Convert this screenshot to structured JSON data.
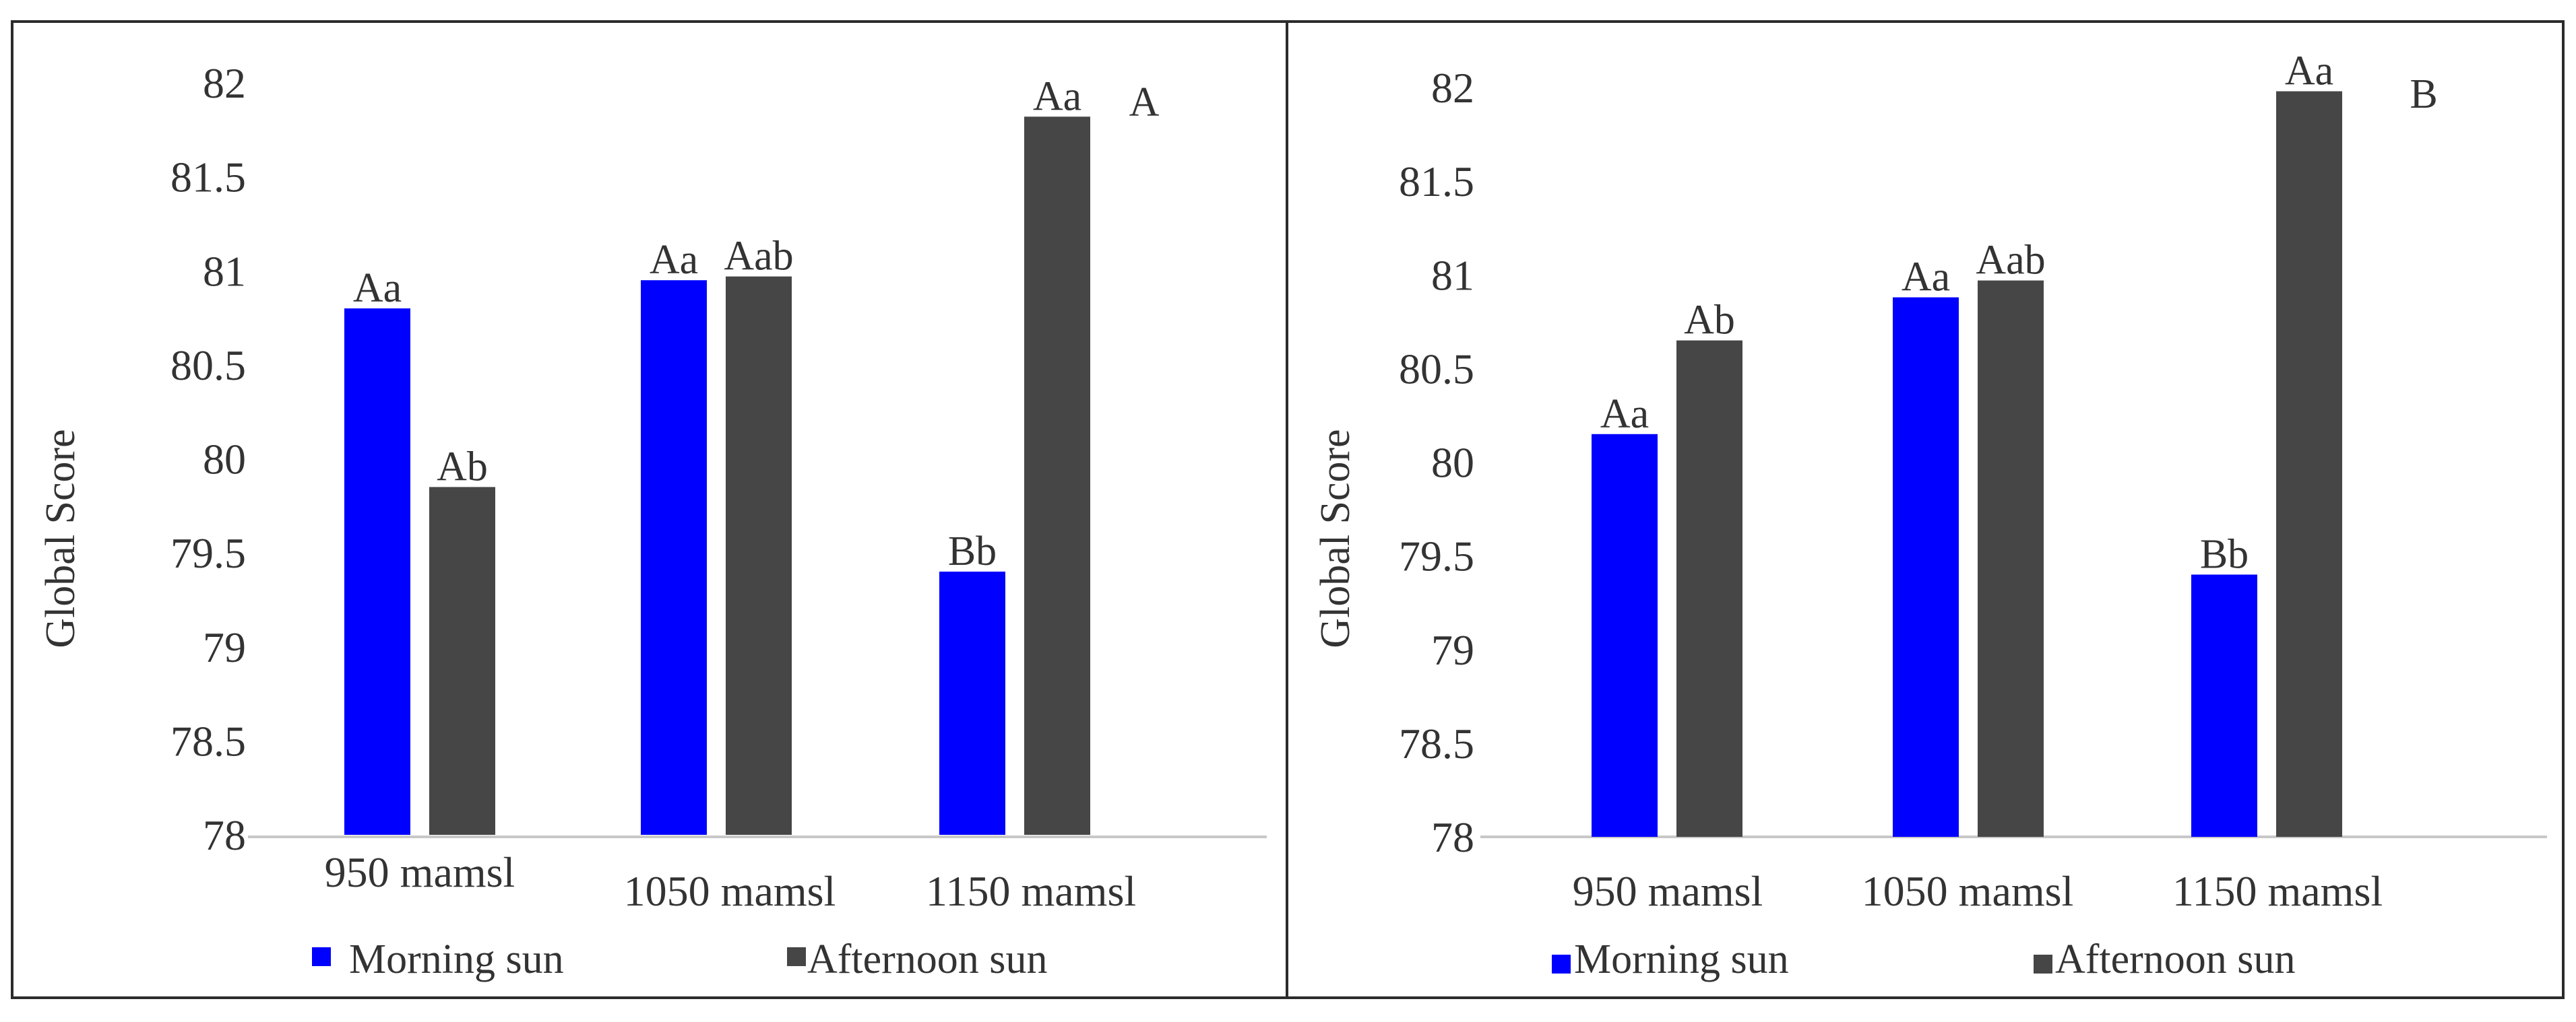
{
  "colors": {
    "morning": "#0000FF",
    "afternoon": "#464646",
    "frame": "#2b2b2b",
    "axis": "#c8c8c8"
  },
  "legend": {
    "morning_label": "Morning sun",
    "afternoon_label": "Afternoon sun"
  },
  "chart_data": [
    {
      "type": "bar",
      "title": "A",
      "xlabel": "",
      "ylabel": "Global Score",
      "ylim": [
        78,
        82
      ],
      "yticks": [
        78,
        78.5,
        79,
        79.5,
        80,
        80.5,
        81,
        81.5,
        82
      ],
      "ytick_labels": [
        "78",
        "78.5",
        "79",
        "79.5",
        "80",
        "80.5",
        "81",
        "81.5",
        "82"
      ],
      "categories": [
        "950 mamsl",
        "1050 mamsl",
        "1150 mamsl"
      ],
      "series": [
        {
          "name": "Morning sun",
          "values": [
            80.8,
            80.95,
            79.4
          ],
          "labels": [
            "Aa",
            "Aa",
            "Bb"
          ]
        },
        {
          "name": "Afternoon sun",
          "values": [
            79.85,
            80.97,
            81.82
          ],
          "labels": [
            "Ab",
            "Aab",
            "Aa"
          ]
        }
      ]
    },
    {
      "type": "bar",
      "title": "B",
      "xlabel": "",
      "ylabel": "Global Score",
      "ylim": [
        78,
        82
      ],
      "yticks": [
        78,
        78.5,
        79,
        79.5,
        80,
        80.5,
        81,
        81.5,
        82
      ],
      "ytick_labels": [
        "78",
        "78.5",
        "79",
        "79.5",
        "80",
        "80.5",
        "81",
        "81.5",
        "82"
      ],
      "categories": [
        "950 mamsl",
        "1050 mamsl",
        "1150 mamsl"
      ],
      "series": [
        {
          "name": "Morning sun",
          "values": [
            80.15,
            80.88,
            79.4
          ],
          "labels": [
            "Aa",
            "Aa",
            "Bb"
          ]
        },
        {
          "name": "Afternoon sun",
          "values": [
            80.65,
            80.97,
            81.98
          ],
          "labels": [
            "Ab",
            "Aab",
            "Aa"
          ]
        }
      ]
    }
  ]
}
